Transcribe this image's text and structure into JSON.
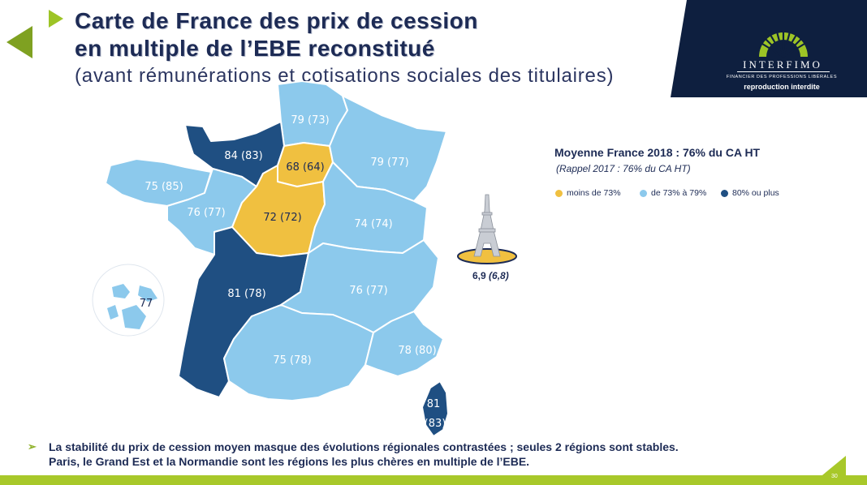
{
  "header": {
    "title_line1": "Carte de France des prix de cession",
    "title_line2": "en multiple de l’EBE reconstitué",
    "subtitle": "(avant rémunérations et cotisations sociales des titulaires)"
  },
  "brand": {
    "name": "INTERFIMO",
    "tagline": "FINANCIER DES PROFESSIONS LIBÉRALES",
    "notice": "reproduction interdite",
    "colors": {
      "background": "#0e1f3f",
      "logo_green": "#9dc426"
    }
  },
  "summary": {
    "title": "Moyenne France 2018 : 76% du CA HT",
    "reminder": "(Rappel 2017 : 76% du CA HT)"
  },
  "legend": [
    {
      "label": "moins de 73%",
      "color": "#f0c040"
    },
    {
      "label": "de 73% à 79%",
      "color": "#8cc9ec"
    },
    {
      "label": "80% ou plus",
      "color": "#1f4f82"
    }
  ],
  "regions": [
    {
      "id": "hauts-de-france",
      "label": "79 (73)",
      "category": "de 73% à 79%"
    },
    {
      "id": "normandie",
      "label": "84 (83)",
      "category": "80% ou plus"
    },
    {
      "id": "ile-de-france",
      "label": "68 (64)",
      "category": "moins de 73%"
    },
    {
      "id": "grand-est",
      "label": "79 (77)",
      "category": "de 73% à 79%"
    },
    {
      "id": "bretagne",
      "label": "75 (85)",
      "category": "de 73% à 79%"
    },
    {
      "id": "pays-de-la-loire",
      "label": "76 (77)",
      "category": "de 73% à 79%"
    },
    {
      "id": "centre-val-de-loire",
      "label": "72 (72)",
      "category": "moins de 73%"
    },
    {
      "id": "bourgogne-franche-comte",
      "label": "74 (74)",
      "category": "de 73% à 79%"
    },
    {
      "id": "nouvelle-aquitaine",
      "label": "81 (78)",
      "category": "80% ou plus"
    },
    {
      "id": "auvergne-rhone-alpes",
      "label": "76 (77)",
      "category": "de 73% à 79%"
    },
    {
      "id": "occitanie",
      "label": "75 (78)",
      "category": "de 73% à 79%"
    },
    {
      "id": "paca",
      "label": "78 (80)",
      "category": "de 73% à 79%"
    },
    {
      "id": "corse",
      "label_line1": "81",
      "label_line2": "(83)",
      "category": "80% ou plus"
    },
    {
      "id": "dom",
      "label": "77",
      "category": "de 73% à 79%"
    }
  ],
  "paris": {
    "value": "6,9",
    "previous": "(6,8)",
    "icon": "eiffel-tower-icon"
  },
  "bullet": {
    "line1": "La stabilité du prix de cession moyen masque des évolutions régionales contrastées ; seules 2 régions sont stables.",
    "line2": "Paris, le Grand Est et la Normandie sont les régions les plus chères en multiple de l’EBE."
  },
  "page_number": "30"
}
